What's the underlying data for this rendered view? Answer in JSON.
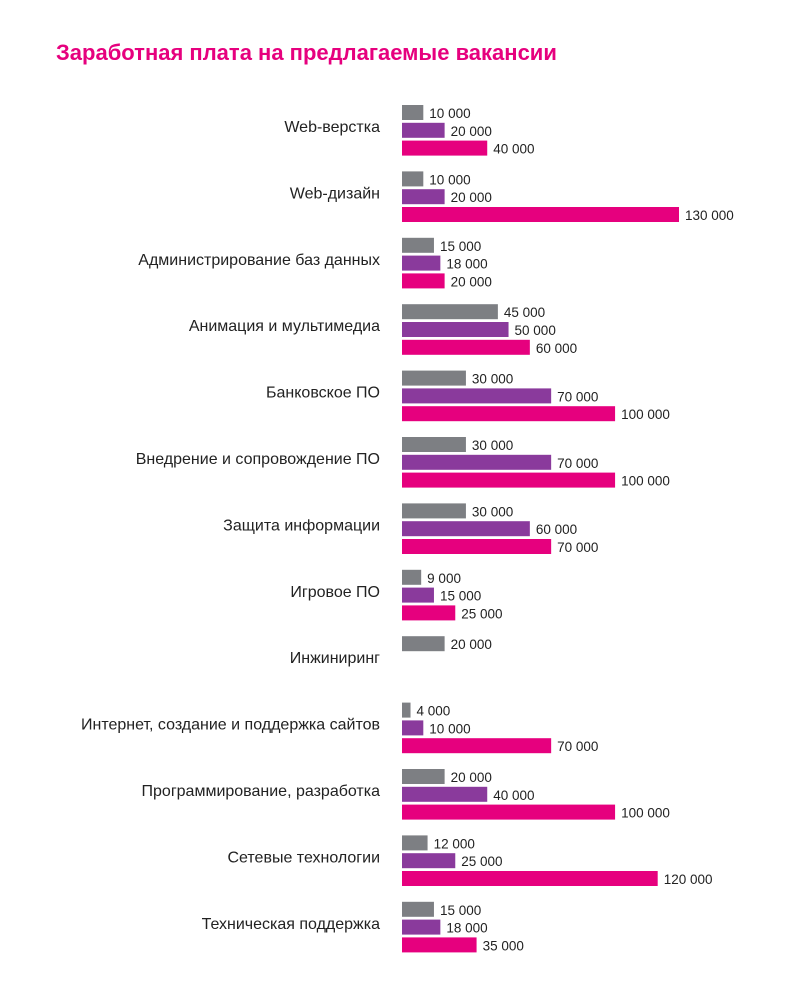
{
  "chart_data": {
    "type": "bar",
    "orientation": "horizontal",
    "title": "Заработная плата на предлагаемые вакансии",
    "categories": [
      "Web-верстка",
      "Web-дизайн",
      "Администрирование баз данных",
      "Анимация и мультимедиа",
      "Банковское ПО",
      "Внедрение и сопровождение ПО",
      "Защита информации",
      "Игровое ПО",
      "Инжиниринг",
      "Интернет, создание и поддержка сайтов",
      "Программирование, разработка",
      "Сетевые технологии",
      "Техническая поддержка"
    ],
    "series": [
      {
        "color": "#7d7f83",
        "values": [
          10000,
          10000,
          15000,
          45000,
          30000,
          30000,
          30000,
          9000,
          20000,
          4000,
          20000,
          12000,
          15000
        ]
      },
      {
        "color": "#8a3a9c",
        "values": [
          20000,
          20000,
          18000,
          50000,
          70000,
          70000,
          60000,
          15000,
          null,
          10000,
          40000,
          25000,
          18000
        ]
      },
      {
        "color": "#e6007e",
        "values": [
          40000,
          130000,
          20000,
          60000,
          100000,
          100000,
          70000,
          25000,
          null,
          70000,
          100000,
          120000,
          35000
        ]
      }
    ],
    "value_labels": [
      [
        "10 000",
        "20 000",
        "40 000"
      ],
      [
        "10 000",
        "20 000",
        "130 000"
      ],
      [
        "15 000",
        "18 000",
        "20 000"
      ],
      [
        "45 000",
        "50 000",
        "60 000"
      ],
      [
        "30 000",
        "70 000",
        "100 000"
      ],
      [
        "30 000",
        "70 000",
        "100 000"
      ],
      [
        "30 000",
        "60 000",
        "70 000"
      ],
      [
        "9 000",
        "15 000",
        "25 000"
      ],
      [
        "20 000",
        null,
        null
      ],
      [
        "4 000",
        "10 000",
        "70 000"
      ],
      [
        "20 000",
        "40 000",
        "100 000"
      ],
      [
        "12 000",
        "25 000",
        "120 000"
      ],
      [
        "15 000",
        "18 000",
        "35 000"
      ]
    ],
    "xlim": [
      0,
      130000
    ],
    "title_color": "#e6007e",
    "grid": false,
    "legend": "none"
  }
}
